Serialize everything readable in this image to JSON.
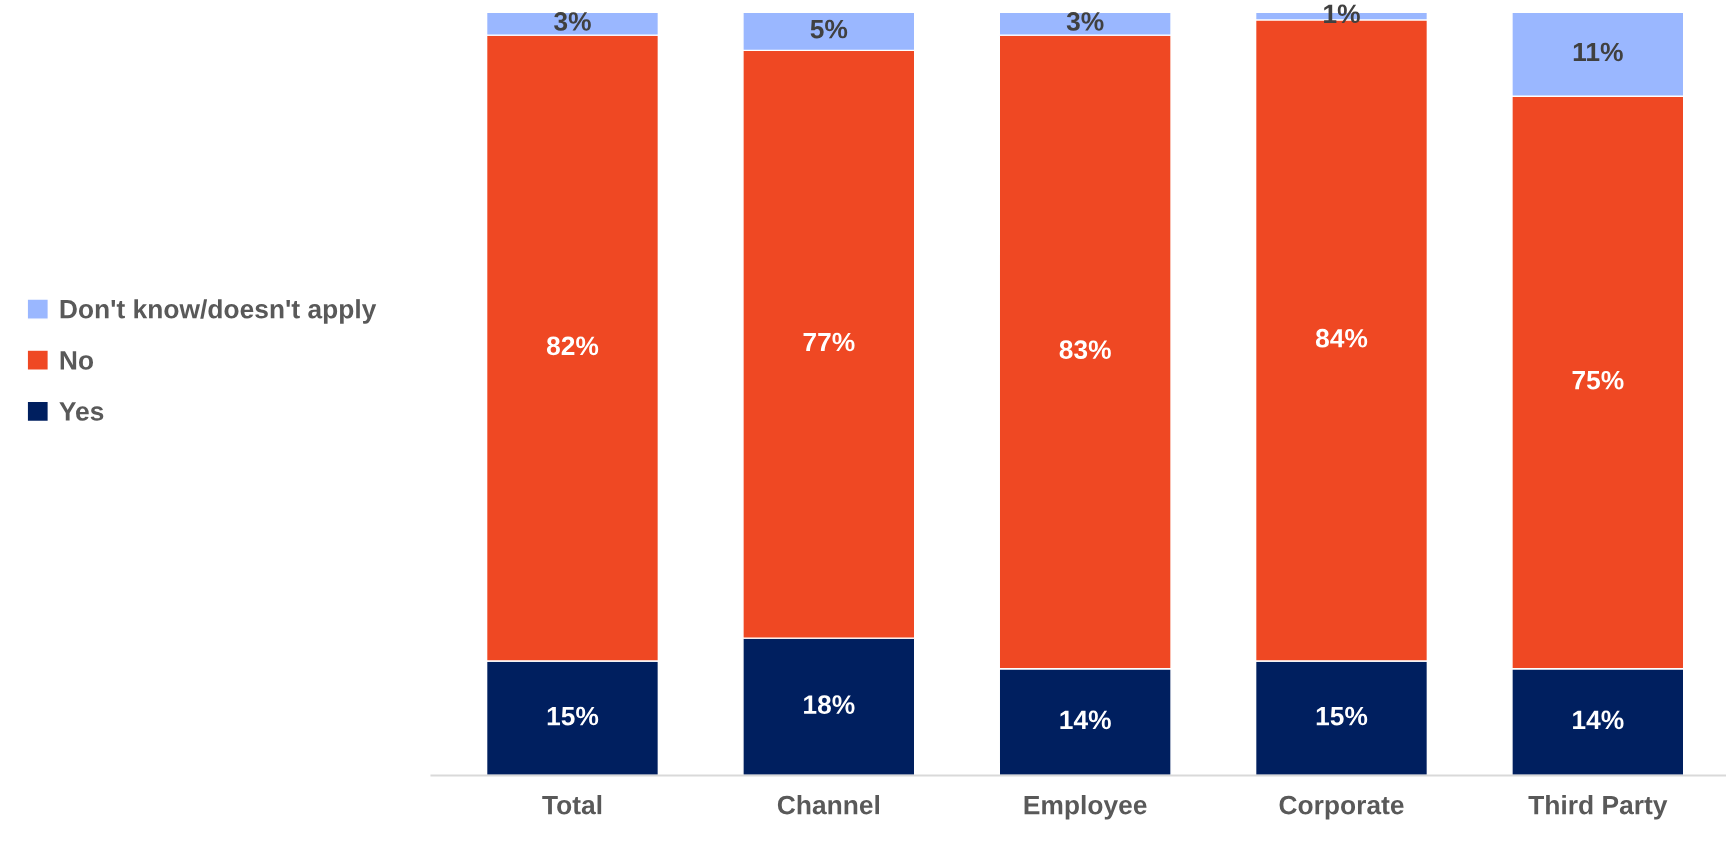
{
  "chart_data": {
    "type": "bar",
    "stacked": true,
    "legend": "left",
    "categories": [
      "Total",
      "Channel",
      "Employee",
      "Corporate",
      "Third Party"
    ],
    "series": [
      {
        "name": "Yes",
        "color": "#001f5f",
        "values": [
          15,
          18,
          14,
          15,
          14
        ],
        "value_labels": [
          "15%",
          "18%",
          "14%",
          "15%",
          "14%"
        ]
      },
      {
        "name": "No",
        "color": "#ef4823",
        "values": [
          82,
          77,
          83,
          84,
          75
        ],
        "value_labels": [
          "82%",
          "77%",
          "83%",
          "84%",
          "75%"
        ]
      },
      {
        "name": "Don't know/doesn't apply",
        "color": "#9ab7ff",
        "values": [
          3,
          5,
          3,
          1,
          11
        ],
        "value_labels": [
          "3%",
          "5%",
          "3%",
          "1%",
          "11%"
        ]
      }
    ]
  }
}
